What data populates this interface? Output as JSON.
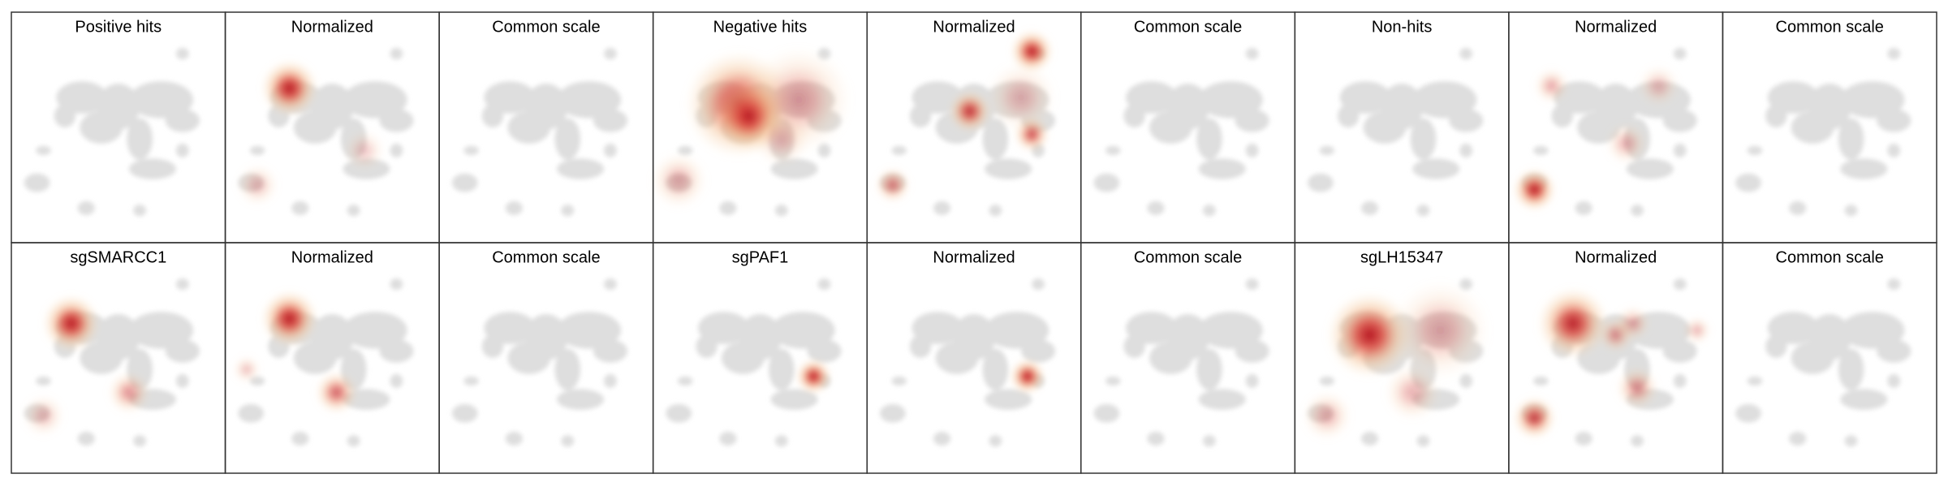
{
  "panels": [
    [
      "Positive hits",
      "Normalized",
      "Common scale",
      "Negative hits",
      "Normalized",
      "Common scale",
      "Non-hits",
      "Normalized",
      "Common scale"
    ],
    [
      "sgSMARCC1",
      "Normalized",
      "Common scale",
      "sgPAF1",
      "Normalized",
      "Common scale",
      "sgLH15347",
      "Normalized",
      "Common scale"
    ]
  ]
}
